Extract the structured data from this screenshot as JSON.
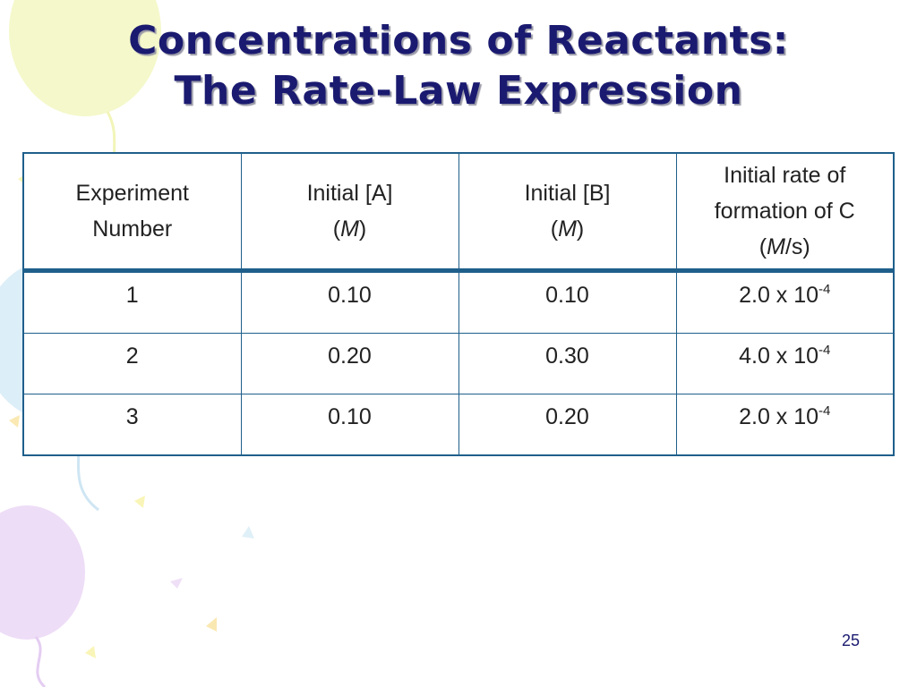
{
  "slide": {
    "title_line1": "Concentrations of Reactants:",
    "title_line2": "The Rate-Law Expression",
    "page_number": "25"
  },
  "table": {
    "headers": [
      {
        "line1": "Experiment",
        "line2": "Number",
        "unit_pre": "",
        "unit_it": "",
        "unit_post": ""
      },
      {
        "line1": "Initial [A]",
        "line2": "",
        "unit_pre": "(",
        "unit_it": "M",
        "unit_post": ")"
      },
      {
        "line1": "Initial [B]",
        "line2": "",
        "unit_pre": "(",
        "unit_it": "M",
        "unit_post": ")"
      },
      {
        "line1": "Initial rate of",
        "line2": "formation of C",
        "unit_pre": "(",
        "unit_it": "M",
        "unit_post": "/s)"
      }
    ],
    "rows": [
      {
        "experiment": "1",
        "a": "0.10",
        "b": "0.10",
        "rate_base": "2.0 x 10",
        "rate_exp": "-4"
      },
      {
        "experiment": "2",
        "a": "0.20",
        "b": "0.30",
        "rate_base": "4.0 x 10",
        "rate_exp": "-4"
      },
      {
        "experiment": "3",
        "a": "0.10",
        "b": "0.20",
        "rate_base": "2.0 x 10",
        "rate_exp": "-4"
      }
    ]
  },
  "colors": {
    "title": "#1a1a70",
    "table_border": "#1f5f8b",
    "balloon_yellow": "#f4f7c4",
    "balloon_blue": "#d8ecf6",
    "balloon_purple": "#ecd9f6"
  }
}
